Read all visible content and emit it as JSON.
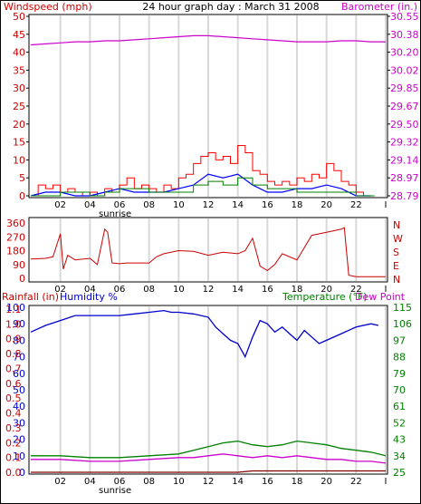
{
  "chart_data": [
    {
      "type": "line",
      "title": "24 hour graph day : March 31 2008",
      "left_label": "Windspeed (mph)",
      "right_label": "Barometer (in.)",
      "x_ticks": [
        "02",
        "04",
        "06",
        "08",
        "10",
        "12",
        "14",
        "16",
        "18",
        "20",
        "22",
        "I"
      ],
      "y_left_ticks": [
        "50",
        "45",
        "40",
        "35",
        "30",
        "25",
        "20",
        "15",
        "10",
        "5",
        "0"
      ],
      "y_left_range": [
        0,
        50
      ],
      "y_right_ticks": [
        "30.55",
        "30.38",
        "30.20",
        "30.02",
        "29.85",
        "29.67",
        "29.50",
        "29.32",
        "29.14",
        "28.97",
        "28.79"
      ],
      "y_right_range": [
        28.79,
        30.55
      ],
      "sunrise_label": "sunrise",
      "colors": {
        "wind_gust": "#ff0000",
        "wind_avg": "#0000ff",
        "wind_dir_green": "#008000",
        "barometer": "#cc00cc",
        "left_axis": "#cc0000",
        "right_axis": "#cc00cc",
        "grid_vertical": "#d8d8d8"
      },
      "series": [
        {
          "name": "Barometer",
          "axis": "right",
          "x": [
            0,
            1,
            2,
            3,
            4,
            5,
            6,
            7,
            8,
            9,
            10,
            11,
            12,
            13,
            14,
            15,
            16,
            17,
            18,
            19,
            20,
            21,
            22,
            23,
            24
          ],
          "values": [
            30.27,
            30.28,
            30.29,
            30.3,
            30.3,
            30.31,
            30.31,
            30.32,
            30.33,
            30.34,
            30.35,
            30.36,
            30.36,
            30.35,
            30.34,
            30.33,
            30.32,
            30.31,
            30.3,
            30.3,
            30.3,
            30.31,
            30.31,
            30.3,
            30.3
          ]
        },
        {
          "name": "Wind gust",
          "axis": "left",
          "x": [
            0,
            0.5,
            1,
            1.5,
            2,
            2.5,
            3,
            3.5,
            4,
            4.5,
            5,
            5.5,
            6,
            6.5,
            7,
            7.5,
            8,
            8.5,
            9,
            9.5,
            10,
            10.5,
            11,
            11.5,
            12,
            12.5,
            13,
            13.5,
            14,
            14.5,
            15,
            15.5,
            16,
            16.5,
            17,
            17.5,
            18,
            18.5,
            19,
            19.5,
            20,
            20.5,
            21,
            21.5,
            22,
            22.5,
            23
          ],
          "values": [
            0,
            3,
            2,
            3,
            1,
            2,
            1,
            0,
            1,
            0,
            2,
            1,
            3,
            5,
            2,
            3,
            2,
            1,
            3,
            2,
            5,
            6,
            9,
            11,
            12,
            10,
            11,
            9,
            14,
            12,
            7,
            6,
            4,
            3,
            4,
            3,
            5,
            4,
            6,
            5,
            9,
            7,
            4,
            3,
            1,
            0,
            0
          ]
        },
        {
          "name": "Wind average",
          "axis": "left",
          "x": [
            0,
            1,
            2,
            3,
            4,
            5,
            6,
            7,
            8,
            9,
            10,
            11,
            12,
            13,
            14,
            15,
            16,
            17,
            18,
            19,
            20,
            21,
            22,
            23
          ],
          "values": [
            0,
            1,
            1,
            0,
            0,
            1,
            2,
            1,
            1,
            1,
            2,
            3,
            6,
            5,
            6,
            3,
            1,
            1,
            2,
            2,
            3,
            2,
            0,
            0
          ]
        },
        {
          "name": "Wind direction variability",
          "axis": "left",
          "x": [
            0,
            2,
            4,
            5,
            6,
            8,
            10,
            11,
            12,
            13,
            14,
            15,
            16,
            18,
            20,
            22,
            23
          ],
          "values": [
            0,
            1,
            0,
            1,
            2,
            1,
            1,
            3,
            4,
            3,
            5,
            3,
            2,
            1,
            1,
            0,
            0
          ]
        }
      ]
    },
    {
      "type": "line",
      "y_right_ticks": [
        "N",
        "W",
        "S",
        "E",
        "N"
      ],
      "y_left_ticks": [
        "360",
        "270",
        "180",
        "90",
        "0"
      ],
      "y_left_range": [
        0,
        360
      ],
      "x_ticks": [
        "02",
        "04",
        "06",
        "08",
        "10",
        "12",
        "14",
        "16",
        "18",
        "20",
        "22",
        "I"
      ],
      "series": [
        {
          "name": "Wind direction",
          "x": [
            0,
            1,
            1.5,
            2,
            2.2,
            2.5,
            3,
            4,
            4.5,
            5,
            5.2,
            5.5,
            6,
            6.5,
            7,
            8,
            8.5,
            9,
            10,
            11,
            12,
            13,
            14,
            14.5,
            15,
            15.5,
            16,
            16.5,
            17,
            18,
            19,
            20,
            21,
            21.2,
            21.5,
            22,
            23,
            23.5,
            24
          ],
          "values": [
            125,
            130,
            140,
            290,
            60,
            150,
            120,
            130,
            90,
            320,
            300,
            100,
            95,
            100,
            100,
            100,
            140,
            160,
            180,
            175,
            150,
            170,
            160,
            180,
            260,
            80,
            50,
            90,
            160,
            120,
            280,
            300,
            320,
            330,
            20,
            10,
            10,
            10,
            10
          ]
        }
      ]
    },
    {
      "type": "line",
      "left_label": "Rainfall (in)",
      "left_label2": "Humidity %",
      "right_label": "Temperature (°F)",
      "right_label2": "Dew Point",
      "y_left_ticks_rain": [
        "1.1",
        "1.0",
        "0.9",
        "0.8",
        "0.7",
        "0.6",
        "0.5",
        "0.4",
        "0.3",
        "0.2",
        "0.1",
        "0.0"
      ],
      "y_left_ticks_hum": [
        "100",
        "90",
        "80",
        "70",
        "60",
        "50",
        "40",
        "30",
        "20",
        "10",
        "0"
      ],
      "y_left_range": [
        0,
        100
      ],
      "y_right_ticks": [
        "115",
        "106",
        "97",
        "88",
        "79",
        "70",
        "61",
        "52",
        "43",
        "34",
        "25"
      ],
      "y_right_range": [
        25,
        115
      ],
      "x_ticks": [
        "02",
        "04",
        "06",
        "08",
        "10",
        "12",
        "14",
        "16",
        "18",
        "20",
        "22",
        "I"
      ],
      "sunrise_label": "sunrise",
      "series": [
        {
          "name": "Humidity",
          "axis": "left",
          "color": "#0000cc",
          "x": [
            0,
            1,
            2,
            3,
            4,
            5,
            6,
            7,
            8,
            9,
            9.5,
            10,
            11,
            12,
            12.5,
            13,
            13.5,
            14,
            14.5,
            15,
            15.5,
            16,
            16.5,
            17,
            17.5,
            18,
            18.5,
            19,
            19.5,
            20,
            21,
            22,
            23,
            23.5
          ],
          "values": [
            85,
            89,
            92,
            95,
            95,
            95,
            95,
            96,
            97,
            98,
            97,
            97,
            96,
            94,
            88,
            84,
            80,
            78,
            70,
            82,
            92,
            90,
            85,
            88,
            84,
            80,
            86,
            82,
            78,
            80,
            84,
            88,
            90,
            89
          ]
        },
        {
          "name": "Temperature",
          "axis": "right",
          "color": "#008000",
          "x": [
            0,
            2,
            4,
            6,
            8,
            10,
            11,
            12,
            13,
            14,
            15,
            16,
            17,
            18,
            19,
            20,
            21,
            22,
            23,
            24
          ],
          "values": [
            34,
            34,
            33,
            33,
            34,
            35,
            37,
            39,
            41,
            42,
            40,
            39,
            40,
            42,
            41,
            40,
            38,
            37,
            36,
            34
          ]
        },
        {
          "name": "Dew Point",
          "axis": "right",
          "color": "#cc00cc",
          "x": [
            0,
            2,
            4,
            6,
            8,
            10,
            11,
            12,
            13,
            14,
            15,
            16,
            17,
            18,
            19,
            20,
            21,
            22,
            23,
            24
          ],
          "values": [
            32,
            32,
            31,
            31,
            32,
            33,
            33,
            34,
            35,
            34,
            33,
            34,
            33,
            34,
            33,
            32,
            32,
            31,
            31,
            30
          ]
        },
        {
          "name": "Rainfall",
          "axis": "left",
          "color": "#800000",
          "x": [
            0,
            14,
            15,
            24
          ],
          "values": [
            0,
            0,
            0.01,
            0.01
          ]
        }
      ]
    }
  ]
}
